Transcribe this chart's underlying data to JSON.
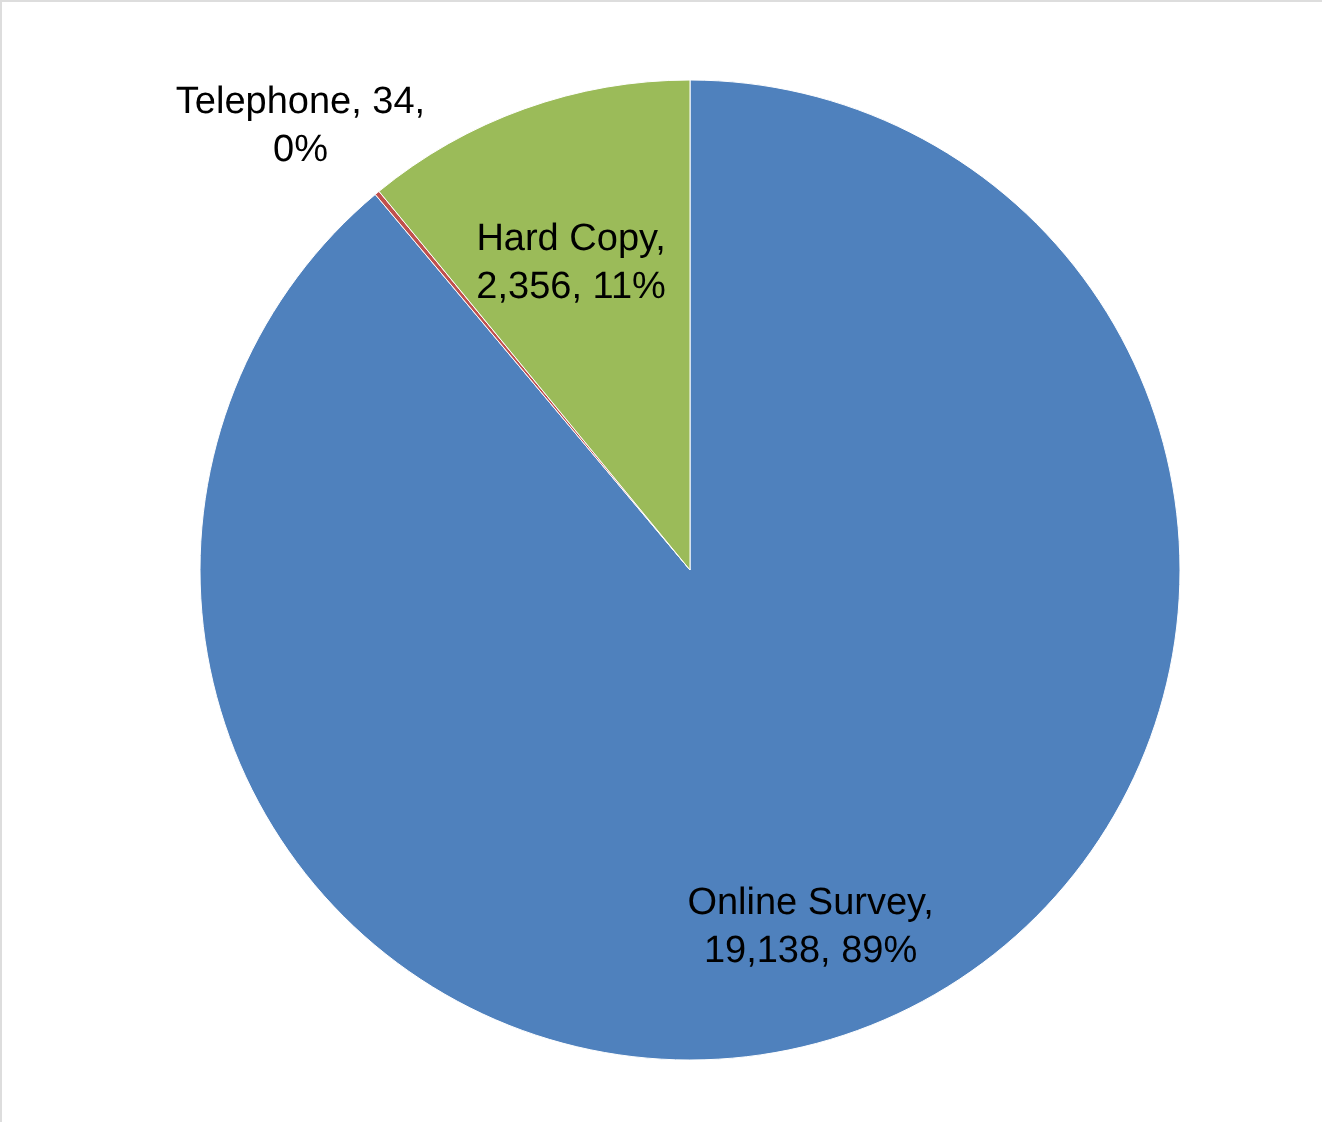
{
  "chart_data": {
    "type": "pie",
    "categories": [
      "Online Survey",
      "Telephone",
      "Hard Copy"
    ],
    "values": [
      19138,
      34,
      2356
    ],
    "colors": [
      "#4f81bd",
      "#c0504d",
      "#9bbb59"
    ],
    "value_labels": [
      ", 19,138, 89%",
      ", 34, 0%",
      ", 2,356, 11%"
    ]
  }
}
